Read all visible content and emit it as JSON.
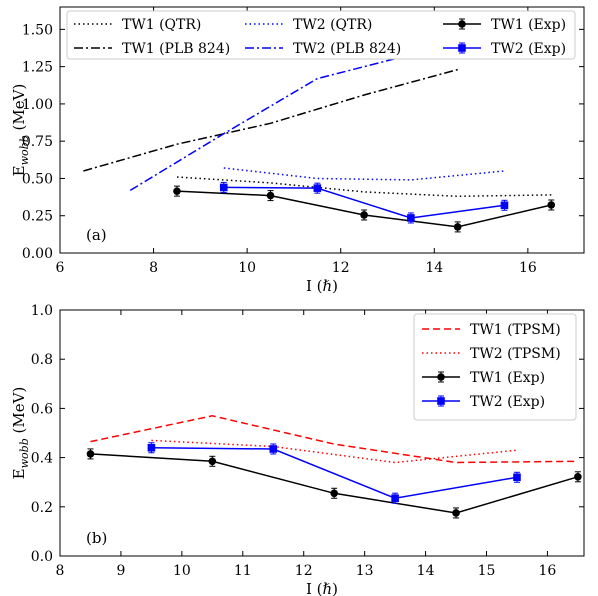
{
  "chart_data": [
    {
      "type": "line",
      "panel_label": "(a)",
      "xlabel": "I (ℏ)",
      "ylabel": "E",
      "ylabel_sub": "wobb",
      "ylabel_unit": " (MeV)",
      "xlim": [
        6,
        17.2
      ],
      "ylim": [
        0,
        1.65
      ],
      "x_ticks": [
        6,
        8,
        10,
        12,
        14,
        16
      ],
      "y_ticks": [
        0.0,
        0.25,
        0.5,
        0.75,
        1.0,
        1.25,
        1.5
      ],
      "y_tick_labels": [
        "0.00",
        "0.25",
        "0.50",
        "0.75",
        "1.00",
        "1.25",
        "1.50"
      ],
      "legend_position": "top",
      "legend_columns": 3,
      "series": [
        {
          "name": "TW1 (QTR)",
          "color": "#000000",
          "style": "dotted",
          "x": [
            8.5,
            10.5,
            12.5,
            14.5,
            16.5
          ],
          "y": [
            0.51,
            0.47,
            0.41,
            0.38,
            0.39
          ]
        },
        {
          "name": "TW1 (PLB 824)",
          "color": "#000000",
          "style": "dashdot",
          "x": [
            6.5,
            8.5,
            10.5,
            12.5,
            14.5
          ],
          "y": [
            0.55,
            0.73,
            0.87,
            1.06,
            1.23
          ]
        },
        {
          "name": "TW2 (QTR)",
          "color": "#0000ff",
          "style": "dotted",
          "x": [
            9.5,
            11.5,
            13.5,
            15.5
          ],
          "y": [
            0.57,
            0.5,
            0.49,
            0.55
          ]
        },
        {
          "name": "TW2 (PLB 824)",
          "color": "#0000ff",
          "style": "dashdot",
          "x": [
            7.5,
            9.5,
            11.5,
            13.5
          ],
          "y": [
            0.42,
            0.8,
            1.17,
            1.33
          ]
        },
        {
          "name": "TW1 (Exp)",
          "color": "#000000",
          "style": "solid",
          "marker": "circle",
          "x": [
            8.5,
            10.5,
            12.5,
            14.5,
            16.5
          ],
          "y": [
            0.415,
            0.385,
            0.255,
            0.175,
            0.322
          ]
        },
        {
          "name": "TW2 (Exp)",
          "color": "#0000ff",
          "style": "solid",
          "marker": "square",
          "x": [
            9.5,
            11.5,
            13.5,
            15.5
          ],
          "y": [
            0.44,
            0.435,
            0.235,
            0.32
          ]
        }
      ]
    },
    {
      "type": "line",
      "panel_label": "(b)",
      "xlabel": "I (ℏ)",
      "ylabel": "E",
      "ylabel_sub": "wobb",
      "ylabel_unit": " (MeV)",
      "xlim": [
        8,
        16.6
      ],
      "ylim": [
        0,
        1.0
      ],
      "x_ticks": [
        8,
        9,
        10,
        11,
        12,
        13,
        14,
        15,
        16
      ],
      "y_ticks": [
        0.0,
        0.2,
        0.4,
        0.6,
        0.8,
        1.0
      ],
      "y_tick_labels": [
        "0.0",
        "0.2",
        "0.4",
        "0.6",
        "0.8",
        "1.0"
      ],
      "legend_position": "top-right",
      "legend_columns": 1,
      "series": [
        {
          "name": "TW1 (TPSM)",
          "color": "#ff0000",
          "style": "dashed",
          "x": [
            8.5,
            10.5,
            12.5,
            14.5,
            16.5
          ],
          "y": [
            0.465,
            0.57,
            0.455,
            0.38,
            0.385
          ]
        },
        {
          "name": "TW2 (TPSM)",
          "color": "#ff0000",
          "style": "dotted",
          "x": [
            9.5,
            11.5,
            13.5,
            15.5
          ],
          "y": [
            0.47,
            0.445,
            0.38,
            0.43
          ]
        },
        {
          "name": "TW1 (Exp)",
          "color": "#000000",
          "style": "solid",
          "marker": "circle",
          "x": [
            8.5,
            10.5,
            12.5,
            14.5,
            16.5
          ],
          "y": [
            0.415,
            0.385,
            0.255,
            0.175,
            0.322
          ]
        },
        {
          "name": "TW2 (Exp)",
          "color": "#0000ff",
          "style": "solid",
          "marker": "square",
          "x": [
            9.5,
            11.5,
            13.5,
            15.5
          ],
          "y": [
            0.44,
            0.435,
            0.235,
            0.32
          ]
        }
      ]
    }
  ]
}
